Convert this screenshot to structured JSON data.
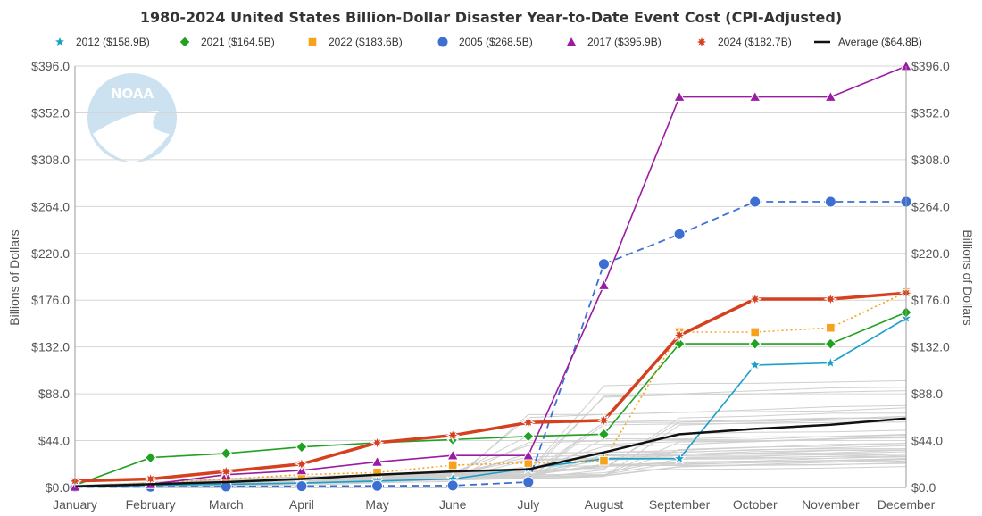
{
  "chart_data": {
    "type": "line",
    "title": "1980-2024 United States Billion-Dollar Disaster Year-to-Date Event Cost (CPI-Adjusted)",
    "ylabel": "Billions of Dollars",
    "ylabel_right": "Billions of Dollars",
    "xlabel": "",
    "categories": [
      "January",
      "February",
      "March",
      "April",
      "May",
      "June",
      "July",
      "August",
      "September",
      "October",
      "November",
      "December"
    ],
    "ylim": [
      0,
      396
    ],
    "yticks": [
      0,
      44,
      88,
      132,
      176,
      220,
      264,
      308,
      352,
      396
    ],
    "ytick_labels": [
      "$0.0",
      "$44.0",
      "$88.0",
      "$132.0",
      "$176.0",
      "$220.0",
      "$264.0",
      "$308.0",
      "$352.0",
      "$396.0"
    ],
    "grid": true,
    "legend_position": "top",
    "watermark": "NOAA",
    "series": [
      {
        "name": "2012 ($158.9B)",
        "color": "#1a9fc9",
        "marker": "star",
        "dash": "solid",
        "width": 1.6,
        "values": [
          1,
          2,
          3,
          4,
          6,
          8,
          18,
          27,
          27,
          115,
          117,
          159
        ]
      },
      {
        "name": "2021 ($164.5B)",
        "color": "#21a121",
        "marker": "diamond",
        "dash": "solid",
        "width": 1.6,
        "values": [
          2,
          28,
          32,
          38,
          42,
          45,
          48,
          50,
          135,
          135,
          135,
          164.5
        ]
      },
      {
        "name": "2022 ($183.6B)",
        "color": "#f7a21b",
        "marker": "square",
        "dash": "dotted",
        "width": 1.6,
        "values": [
          1,
          4,
          8,
          12,
          14,
          21,
          23,
          25,
          146,
          146,
          150,
          183.6
        ]
      },
      {
        "name": "2005 ($268.5B)",
        "color": "#3c6fd1",
        "marker": "circle",
        "dash": "dashed",
        "width": 1.8,
        "values": [
          0.3,
          0.6,
          0.9,
          1.2,
          1.5,
          1.8,
          5,
          210,
          238,
          268.5,
          268.5,
          268.5
        ]
      },
      {
        "name": "2017 ($395.9B)",
        "color": "#9b1ba3",
        "marker": "triangle",
        "dash": "solid",
        "width": 1.6,
        "values": [
          0.5,
          3,
          12,
          16,
          24,
          30,
          30,
          190,
          367,
          367,
          367,
          395.9
        ]
      },
      {
        "name": "2024 ($182.7B)",
        "color": "#d5401f",
        "marker": "burst",
        "dash": "solid",
        "width": 3.5,
        "values": [
          6,
          8,
          15,
          22,
          42,
          49,
          61,
          63,
          143,
          177,
          177,
          182.7
        ]
      },
      {
        "name": "Average ($64.8B)",
        "color": "#111111",
        "marker": "none",
        "dash": "solid",
        "width": 2.5,
        "values": [
          1,
          3,
          5,
          8,
          12,
          15,
          17,
          33,
          50,
          55,
          59,
          64.8
        ]
      }
    ]
  }
}
